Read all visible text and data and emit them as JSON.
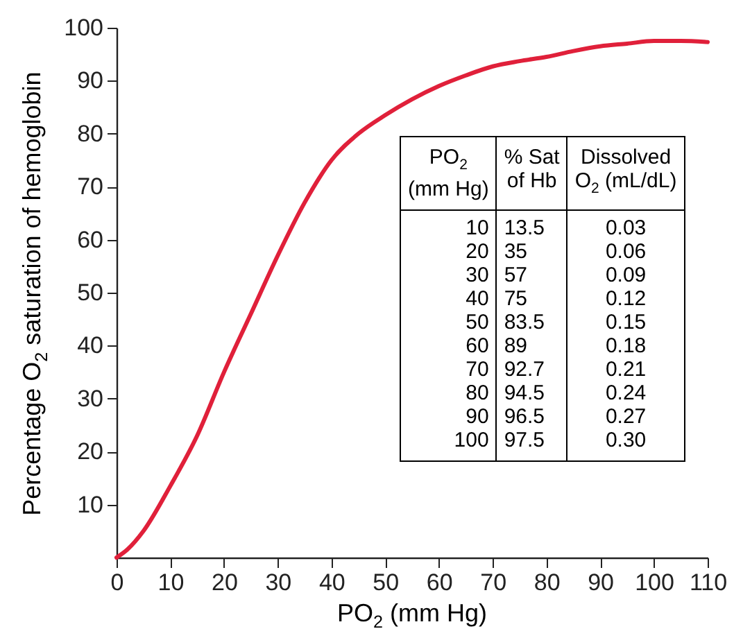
{
  "chart_data": {
    "type": "line",
    "xlabel": "PO$_{2}$ (mm Hg)",
    "ylabel": "Percentage O$_{2}$ saturation of hemoglobin",
    "x": [
      0,
      2,
      5,
      10,
      15,
      20,
      25,
      30,
      35,
      40,
      45,
      50,
      55,
      60,
      65,
      70,
      75,
      80,
      85,
      90,
      95,
      100,
      105,
      110
    ],
    "series": [
      {
        "color": "#e0203a",
        "values": [
          0,
          1.5,
          5,
          13.5,
          23,
          35,
          46,
          57,
          67,
          75,
          80,
          83.5,
          86.5,
          89,
          91,
          92.7,
          93.7,
          94.5,
          95.6,
          96.5,
          97,
          97.5,
          97.5,
          97.3
        ]
      }
    ],
    "xlim": [
      0,
      110
    ],
    "xticks": [
      0,
      10,
      20,
      30,
      40,
      50,
      60,
      70,
      80,
      90,
      100,
      110
    ],
    "ylim": [
      0,
      100
    ],
    "yticks": [
      10,
      20,
      30,
      40,
      50,
      60,
      70,
      80,
      90,
      100
    ],
    "grid": false,
    "annotations": [
      "PO$_{2}$\n(mm Hg)",
      "% Sat\nof Hb",
      "Dissolved\nO$_{2}$ (mL/dL)",
      "10",
      "13.5",
      "0.03",
      "20",
      "35",
      "0.06",
      "30",
      "57",
      "0.09",
      "40",
      "75",
      "0.12",
      "50",
      "83.5",
      "0.15",
      "60",
      "89",
      "0.18",
      "70",
      "92.7",
      "0.21",
      "80",
      "94.5",
      "0.24",
      "90",
      "96.5",
      "0.27",
      "100",
      "97.5",
      "0.30"
    ]
  }
}
